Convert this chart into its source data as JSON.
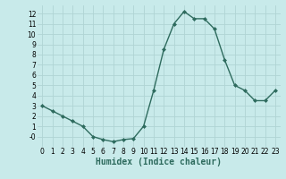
{
  "x": [
    0,
    1,
    2,
    3,
    4,
    5,
    6,
    7,
    8,
    9,
    10,
    11,
    12,
    13,
    14,
    15,
    16,
    17,
    18,
    19,
    20,
    21,
    22,
    23
  ],
  "y": [
    3,
    2.5,
    2,
    1.5,
    1,
    0,
    -0.3,
    -0.5,
    -0.3,
    -0.2,
    1,
    4.5,
    8.5,
    11.0,
    12.2,
    11.5,
    11.5,
    10.5,
    7.5,
    5,
    4.5,
    3.5,
    3.5,
    4.5
  ],
  "line_color": "#2e6b5e",
  "marker": "D",
  "marker_size": 2,
  "bg_color": "#c8eaea",
  "grid_color": "#b0d4d4",
  "xlabel": "Humidex (Indice chaleur)",
  "xlabel_fontsize": 7,
  "xlim": [
    -0.5,
    23.5
  ],
  "ylim": [
    -1,
    12.8
  ],
  "yticks": [
    0,
    1,
    2,
    3,
    4,
    5,
    6,
    7,
    8,
    9,
    10,
    11,
    12
  ],
  "ytick_labels": [
    "-0",
    "1",
    "2",
    "3",
    "4",
    "5",
    "6",
    "7",
    "8",
    "9",
    "10",
    "11",
    "12"
  ],
  "xticks": [
    0,
    1,
    2,
    3,
    4,
    5,
    6,
    7,
    8,
    9,
    10,
    11,
    12,
    13,
    14,
    15,
    16,
    17,
    18,
    19,
    20,
    21,
    22,
    23
  ],
  "tick_fontsize": 5.5,
  "linewidth": 1.0
}
